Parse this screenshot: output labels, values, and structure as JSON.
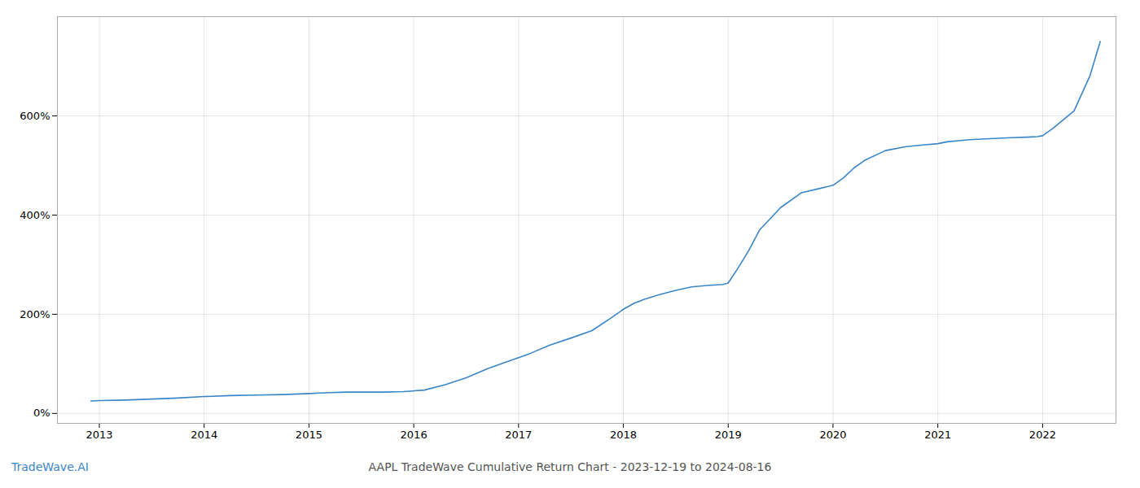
{
  "chart_data": {
    "type": "line",
    "title": "AAPL TradeWave Cumulative Return Chart - 2023-12-19 to 2024-08-16",
    "annotations": [
      "TradeWave.AI"
    ],
    "x": [
      2012.92,
      2013.0,
      2013.25,
      2013.5,
      2013.75,
      2014.0,
      2014.25,
      2014.5,
      2014.75,
      2015.0,
      2015.1,
      2015.2,
      2015.35,
      2015.5,
      2015.7,
      2015.9,
      2016.1,
      2016.3,
      2016.5,
      2016.7,
      2016.9,
      2017.1,
      2017.3,
      2017.5,
      2017.7,
      2017.9,
      2018.0,
      2018.1,
      2018.2,
      2018.35,
      2018.5,
      2018.65,
      2018.8,
      2018.95,
      2019.0,
      2019.1,
      2019.2,
      2019.3,
      2019.5,
      2019.7,
      2019.9,
      2020.0,
      2020.1,
      2020.2,
      2020.3,
      2020.5,
      2020.7,
      2020.9,
      2021.0,
      2021.1,
      2021.2,
      2021.3,
      2021.5,
      2021.7,
      2021.85,
      2021.95,
      2022.0,
      2022.1,
      2022.3,
      2022.45,
      2022.55
    ],
    "values": [
      25,
      26,
      27,
      29,
      31,
      34,
      36,
      37,
      38,
      40,
      41,
      42,
      43,
      43,
      43,
      44,
      47,
      58,
      72,
      90,
      105,
      120,
      138,
      152,
      167,
      195,
      210,
      222,
      230,
      240,
      248,
      255,
      258,
      260,
      263,
      295,
      330,
      370,
      415,
      445,
      455,
      460,
      475,
      495,
      510,
      530,
      538,
      542,
      544,
      548,
      550,
      552,
      554,
      556,
      557,
      558,
      560,
      575,
      610,
      680,
      750
    ],
    "color": "#3a86c8",
    "xlim": [
      2012.6,
      2022.7
    ],
    "xticks": [
      2013,
      2014,
      2015,
      2016,
      2017,
      2018,
      2019,
      2020,
      2021,
      2022
    ],
    "ylim": [
      -20,
      800
    ],
    "yticks": [
      {
        "value": 0,
        "label": "0%"
      },
      {
        "value": 200,
        "label": "200%"
      },
      {
        "value": 400,
        "label": "400%"
      },
      {
        "value": 600,
        "label": "600%"
      }
    ],
    "grid": true
  }
}
